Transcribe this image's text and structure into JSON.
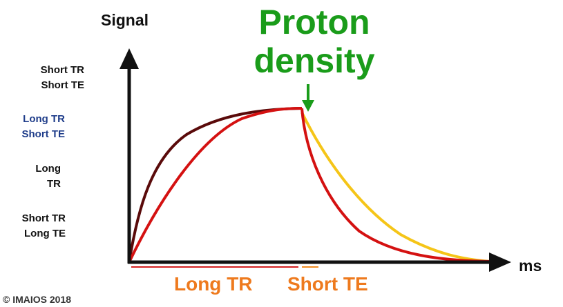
{
  "axes": {
    "y_label": "Signal",
    "x_label": "ms"
  },
  "title": {
    "line1": "Proton",
    "line2": "density"
  },
  "legend": [
    {
      "line1": "Short TR",
      "line2": "Short TE",
      "color": "#111111"
    },
    {
      "line1": "Long TR",
      "line2": "Short TE",
      "color": "#1f3d8a"
    },
    {
      "line1": "Long",
      "line2": "TR",
      "color": "#111111"
    },
    {
      "line1": "Short TR",
      "line2": "Long TE",
      "color": "#111111"
    }
  ],
  "bottom_labels": {
    "long_tr": "Long TR",
    "short_te": "Short TE"
  },
  "copyright": "© IMAIOS 2018",
  "colors": {
    "curve_dark": "#5a0a0a",
    "curve_red": "#d41111",
    "curve_yellow": "#f5c518",
    "arrow_green": "#1a9c1a",
    "label_orange": "#ee7a1e",
    "underline_red": "#d42020",
    "underline_orange": "#f08a20",
    "axis": "#111111"
  }
}
